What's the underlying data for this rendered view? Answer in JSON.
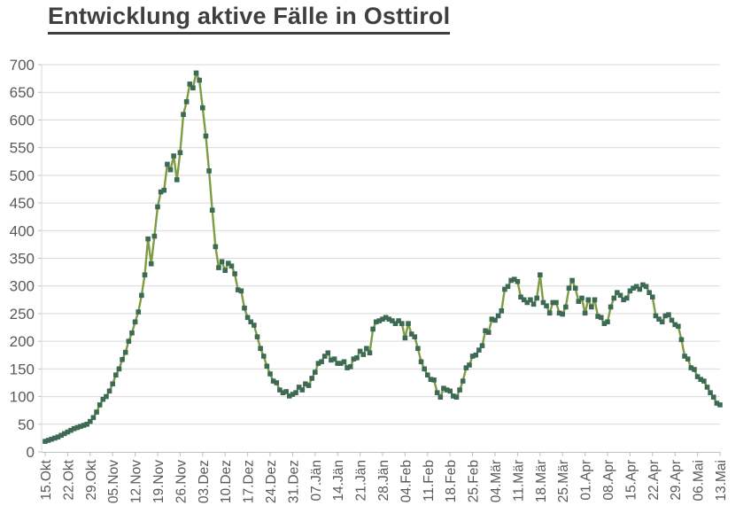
{
  "title": "Entwicklung aktive Fälle in Osttirol",
  "chart_data": {
    "type": "line",
    "title": "Entwicklung aktive Fälle in Osttirol",
    "frequency": "daily",
    "marker_shape": "square",
    "grid": true,
    "legend": false,
    "ylim": [
      0,
      700
    ],
    "y_ticks": [
      0,
      50,
      100,
      150,
      200,
      250,
      300,
      350,
      400,
      450,
      500,
      550,
      600,
      650,
      700
    ],
    "x_tick_labels": [
      "15.Okt",
      "22.Okt",
      "29.Okt",
      "05.Nov",
      "12.Nov",
      "19.Nov",
      "26.Nov",
      "03.Dez",
      "10.Dez",
      "17.Dez",
      "24.Dez",
      "31.Dez",
      "07.Jän",
      "14.Jän",
      "21.Jän",
      "28.Jän",
      "04.Feb",
      "11.Feb",
      "18.Feb",
      "25.Feb",
      "04.Mär",
      "11.Mär",
      "18.Mär",
      "25.Mär",
      "01.Apr",
      "08.Apr",
      "15.Apr",
      "22.Apr",
      "29.Apr",
      "06.Mai",
      "13.Mai"
    ],
    "values": [
      19,
      21,
      23,
      25,
      27,
      30,
      33,
      36,
      39,
      42,
      44,
      46,
      48,
      50,
      55,
      62,
      72,
      85,
      95,
      100,
      110,
      123,
      139,
      150,
      167,
      180,
      200,
      215,
      235,
      253,
      283,
      320,
      385,
      340,
      390,
      443,
      470,
      473,
      520,
      510,
      535,
      492,
      541,
      610,
      633,
      665,
      658,
      685,
      672,
      622,
      571,
      508,
      437,
      371,
      333,
      344,
      328,
      341,
      336,
      322,
      293,
      291,
      260,
      243,
      235,
      229,
      208,
      187,
      173,
      155,
      141,
      128,
      125,
      112,
      107,
      109,
      101,
      104,
      107,
      117,
      112,
      123,
      120,
      133,
      144,
      160,
      163,
      173,
      179,
      166,
      168,
      160,
      160,
      163,
      152,
      154,
      168,
      170,
      182,
      176,
      187,
      179,
      222,
      235,
      237,
      240,
      243,
      240,
      237,
      232,
      237,
      232,
      206,
      232,
      213,
      208,
      187,
      163,
      150,
      139,
      131,
      130,
      107,
      99,
      115,
      112,
      110,
      101,
      99,
      112,
      128,
      152,
      157,
      173,
      175,
      184,
      192,
      219,
      216,
      240,
      238,
      246,
      255,
      294,
      299,
      310,
      312,
      308,
      280,
      275,
      270,
      275,
      267,
      278,
      320,
      270,
      264,
      251,
      270,
      270,
      251,
      249,
      262,
      296,
      310,
      296,
      272,
      278,
      251,
      275,
      262,
      275,
      245,
      243,
      232,
      235,
      262,
      278,
      288,
      283,
      275,
      278,
      291,
      296,
      299,
      294,
      302,
      299,
      288,
      280,
      246,
      240,
      235,
      246,
      248,
      238,
      230,
      227,
      203,
      173,
      168,
      152,
      149,
      136,
      131,
      128,
      117,
      107,
      99,
      88,
      85
    ],
    "colors": {
      "line": "#7e9c42",
      "marker": "#3c6a55",
      "grid": "#d9d9d9",
      "axis": "#bfbfbf",
      "tick_text": "#595959",
      "title_text": "#3f3f3f"
    }
  }
}
